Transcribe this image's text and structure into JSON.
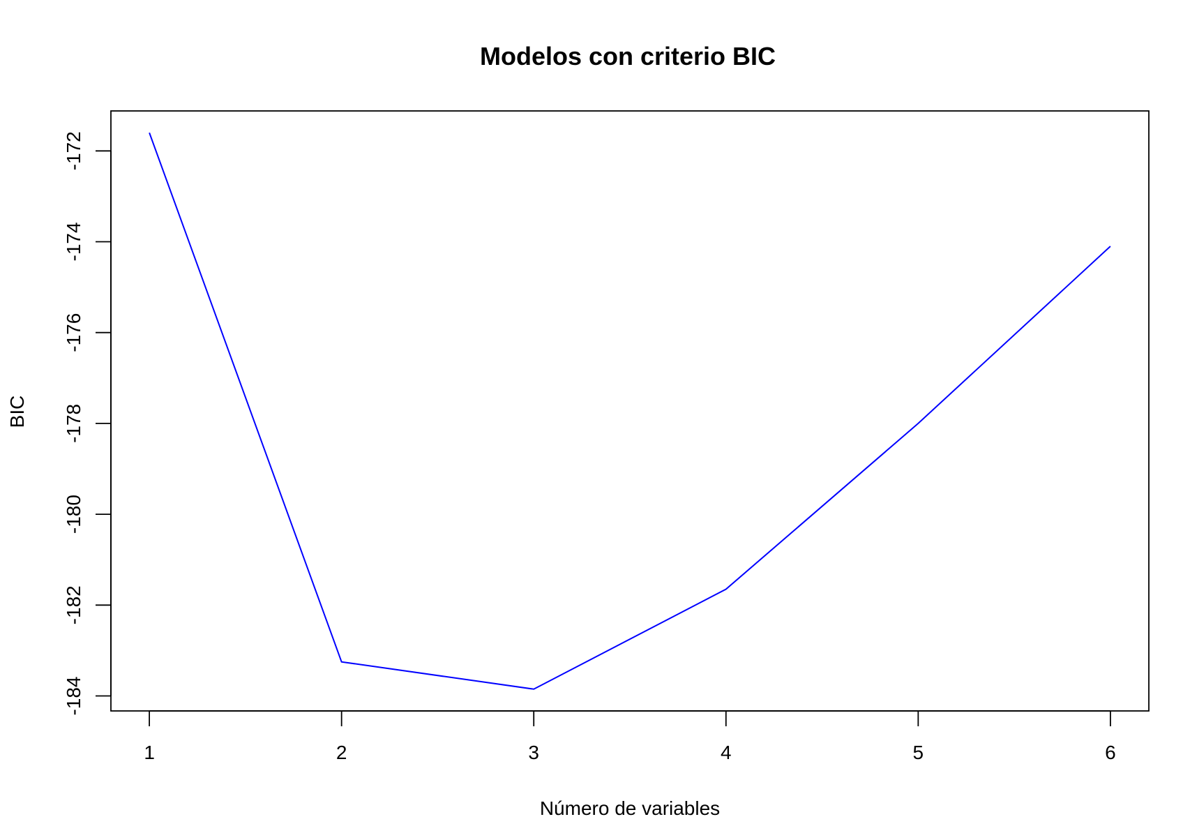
{
  "chart_data": {
    "type": "line",
    "title": "Modelos con criterio BIC",
    "xlabel": "Número de variables",
    "ylabel": "BIC",
    "x": [
      1,
      2,
      3,
      4,
      5,
      6
    ],
    "series": [
      {
        "values": [
          -171.6,
          -183.25,
          -183.85,
          -181.65,
          -178.0,
          -174.1
        ],
        "color": "#0000ff"
      }
    ],
    "x_ticks": [
      1,
      2,
      3,
      4,
      5,
      6
    ],
    "x_tick_labels": [
      "1",
      "2",
      "3",
      "4",
      "5",
      "6"
    ],
    "y_ticks": [
      -184,
      -182,
      -180,
      -178,
      -176,
      -174,
      -172
    ],
    "y_tick_labels": [
      "-184",
      "-182",
      "-180",
      "-178",
      "-176",
      "-174",
      "-172"
    ],
    "xlim": [
      0.8,
      6.2
    ],
    "ylim": [
      -184.33,
      -171.12
    ],
    "grid": false,
    "legend": "none",
    "line_color": "#0000ff"
  }
}
